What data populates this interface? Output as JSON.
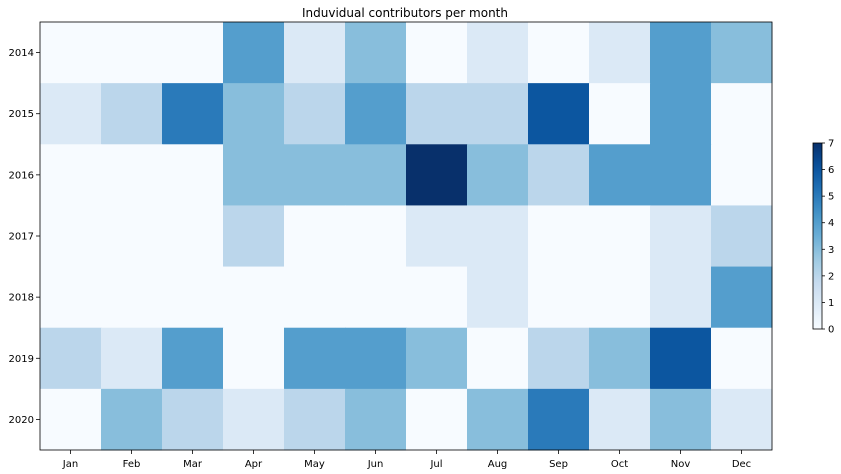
{
  "chart_data": {
    "type": "heatmap",
    "title": "Induvidual contributors per month",
    "xlabel": "",
    "ylabel": "",
    "x_categories": [
      "Jan",
      "Feb",
      "Mar",
      "Apr",
      "May",
      "Jun",
      "Jul",
      "Aug",
      "Sep",
      "Oct",
      "Nov",
      "Dec"
    ],
    "y_categories": [
      "2014",
      "2015",
      "2016",
      "2017",
      "2018",
      "2019",
      "2020"
    ],
    "values": [
      [
        0,
        0,
        0,
        4,
        1,
        3,
        0,
        1,
        0,
        1,
        4,
        3
      ],
      [
        1,
        2,
        5,
        3,
        2,
        4,
        2,
        2,
        6,
        0,
        4,
        0
      ],
      [
        0,
        0,
        0,
        3,
        3,
        3,
        7,
        3,
        2,
        4,
        4,
        0
      ],
      [
        0,
        0,
        0,
        2,
        0,
        0,
        1,
        1,
        0,
        0,
        1,
        2
      ],
      [
        0,
        0,
        0,
        0,
        0,
        0,
        0,
        1,
        0,
        0,
        1,
        4
      ],
      [
        2,
        1,
        4,
        0,
        4,
        4,
        3,
        0,
        2,
        3,
        6,
        0
      ],
      [
        0,
        3,
        2,
        1,
        2,
        3,
        0,
        3,
        5,
        1,
        3,
        1
      ]
    ],
    "colormap": "Blues",
    "colorbar": {
      "min": 0,
      "max": 7,
      "ticks": [
        "0",
        "1",
        "2",
        "3",
        "4",
        "5",
        "6",
        "7"
      ]
    },
    "colors": {
      "low": "#f7fbff",
      "high": "#08306b"
    },
    "grid": false,
    "legend": "colorbar-right"
  }
}
